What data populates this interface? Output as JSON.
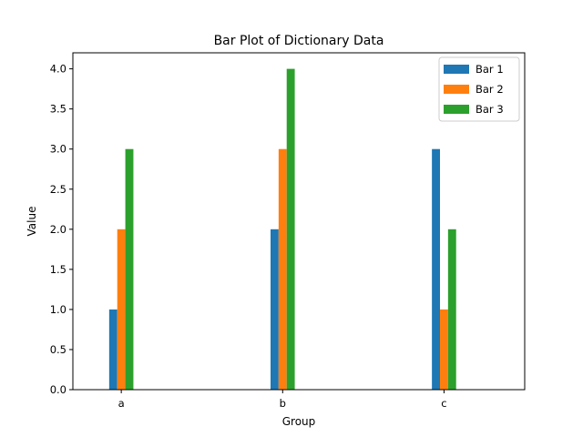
{
  "chart_data": {
    "type": "bar",
    "title": "Bar Plot of Dictionary Data",
    "xlabel": "Group",
    "ylabel": "Value",
    "categories": [
      "a",
      "b",
      "c"
    ],
    "series": [
      {
        "name": "Bar 1",
        "values": [
          1,
          2,
          3
        ],
        "color": "#1f77b4"
      },
      {
        "name": "Bar 2",
        "values": [
          2,
          3,
          1
        ],
        "color": "#ff7f0e"
      },
      {
        "name": "Bar 3",
        "values": [
          3,
          4,
          2
        ],
        "color": "#2ca02c"
      }
    ],
    "ylim": [
      0,
      4.2
    ],
    "yticks": [
      "0.0",
      "0.5",
      "1.0",
      "1.5",
      "2.0",
      "2.5",
      "3.0",
      "3.5",
      "4.0"
    ],
    "legend_position": "top-right",
    "grid": false
  }
}
